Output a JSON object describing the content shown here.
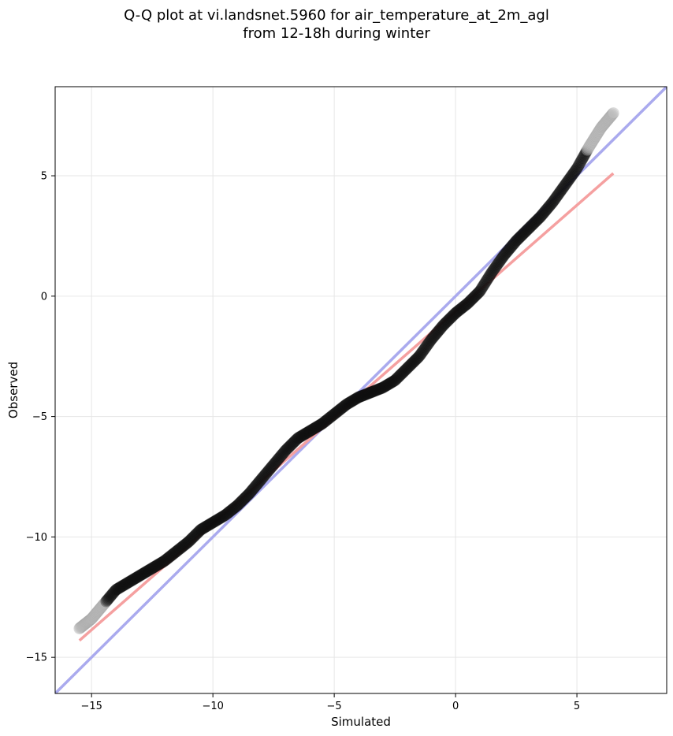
{
  "chart_data": {
    "type": "scatter",
    "title_lines": [
      "Q-Q plot at vi.landsnet.5960 for air_temperature_at_2m_agl",
      "from 12-18h during winter"
    ],
    "xlabel": "Simulated",
    "ylabel": "Observed",
    "xlim": [
      -16.5,
      8.7
    ],
    "ylim": [
      -16.5,
      8.7
    ],
    "xticks": [
      -15,
      -10,
      -5,
      0,
      5
    ],
    "yticks": [
      -15,
      -10,
      -5,
      0,
      5
    ],
    "xtick_labels": [
      "−15",
      "−10",
      "−5",
      "0",
      "5"
    ],
    "ytick_labels": [
      "−15",
      "−10",
      "−5",
      "0",
      "5"
    ],
    "grid": true,
    "colors": {
      "identity_line": "#aaaaee",
      "fit_line": "#f5a0a0",
      "core_points": "#111111",
      "tail_points": "#bbbbbb"
    },
    "identity_line": {
      "x": [
        -16.5,
        8.7
      ],
      "y": [
        -16.5,
        8.7
      ]
    },
    "fit_line": {
      "x": [
        -15.5,
        6.5
      ],
      "y": [
        -14.3,
        5.1
      ]
    },
    "qq_curve": {
      "x": [
        -15.5,
        -15.0,
        -14.5,
        -14.0,
        -13.5,
        -13.0,
        -12.5,
        -12.0,
        -11.5,
        -11.0,
        -10.5,
        -10.0,
        -9.5,
        -9.0,
        -8.5,
        -8.0,
        -7.5,
        -7.0,
        -6.5,
        -6.0,
        -5.5,
        -5.0,
        -4.5,
        -4.0,
        -3.5,
        -3.0,
        -2.5,
        -2.0,
        -1.5,
        -1.0,
        -0.5,
        0.0,
        0.5,
        1.0,
        1.5,
        2.0,
        2.5,
        3.0,
        3.5,
        4.0,
        4.5,
        5.0,
        5.5,
        6.0,
        6.5
      ],
      "y": [
        -13.8,
        -13.4,
        -12.8,
        -12.2,
        -11.9,
        -11.6,
        -11.3,
        -11.0,
        -10.6,
        -10.2,
        -9.7,
        -9.4,
        -9.1,
        -8.7,
        -8.2,
        -7.6,
        -7.0,
        -6.4,
        -5.9,
        -5.6,
        -5.3,
        -4.9,
        -4.5,
        -4.2,
        -4.0,
        -3.8,
        -3.5,
        -3.0,
        -2.5,
        -1.8,
        -1.2,
        -0.7,
        -0.3,
        0.2,
        1.0,
        1.7,
        2.3,
        2.8,
        3.3,
        3.9,
        4.6,
        5.3,
        6.2,
        7.0,
        7.6
      ]
    },
    "tail_fraction": 0.05
  }
}
